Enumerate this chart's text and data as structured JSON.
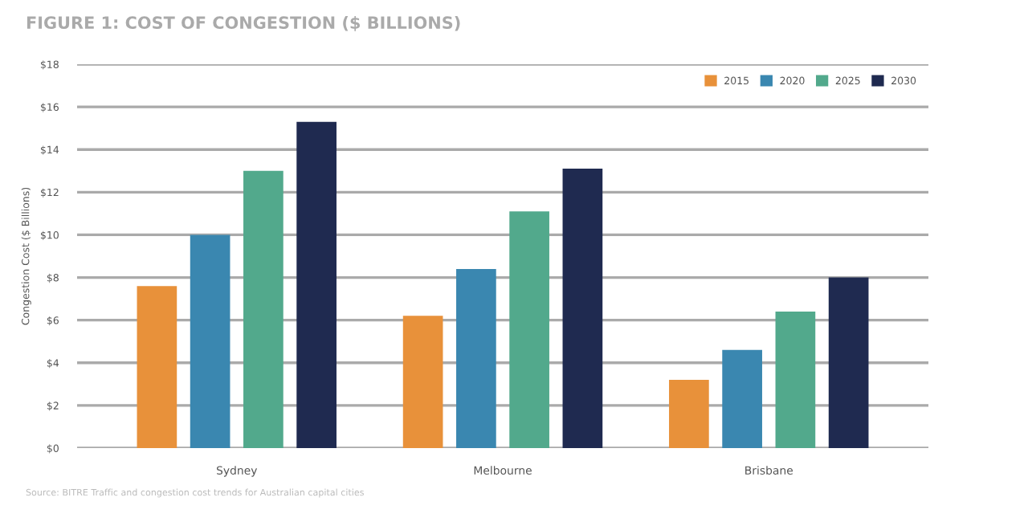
{
  "chart_data": {
    "type": "bar",
    "title": "FIGURE 1: COST OF CONGESTION ($ BILLIONS)",
    "ylabel": "Congestion Cost ($ Billions)",
    "categories": [
      "Sydney",
      "Melbourne",
      "Brisbane"
    ],
    "series": [
      {
        "name": "2015",
        "color": "#e8913a",
        "values": [
          7.6,
          6.2,
          3.2
        ]
      },
      {
        "name": "2020",
        "color": "#3a87b0",
        "values": [
          10.0,
          8.4,
          4.6
        ]
      },
      {
        "name": "2025",
        "color": "#52a98c",
        "values": [
          13.0,
          11.1,
          6.4
        ]
      },
      {
        "name": "2030",
        "color": "#1f2a50",
        "values": [
          15.3,
          13.1,
          8.0
        ]
      }
    ],
    "ylim": [
      0,
      18
    ],
    "yticks": [
      {
        "value": 0,
        "label": "$0"
      },
      {
        "value": 2,
        "label": "$2"
      },
      {
        "value": 4,
        "label": "$4"
      },
      {
        "value": 6,
        "label": "$6"
      },
      {
        "value": 8,
        "label": "$8"
      },
      {
        "value": 10,
        "label": "$10"
      },
      {
        "value": 12,
        "label": "$12"
      },
      {
        "value": 14,
        "label": "$14"
      },
      {
        "value": 16,
        "label": "$16"
      },
      {
        "value": 18,
        "label": "$18"
      }
    ],
    "grid": "y",
    "legend": "top right",
    "annotations": [
      "Source: BITRE Traffic and congestion cost trends for Australian capital cities"
    ]
  }
}
